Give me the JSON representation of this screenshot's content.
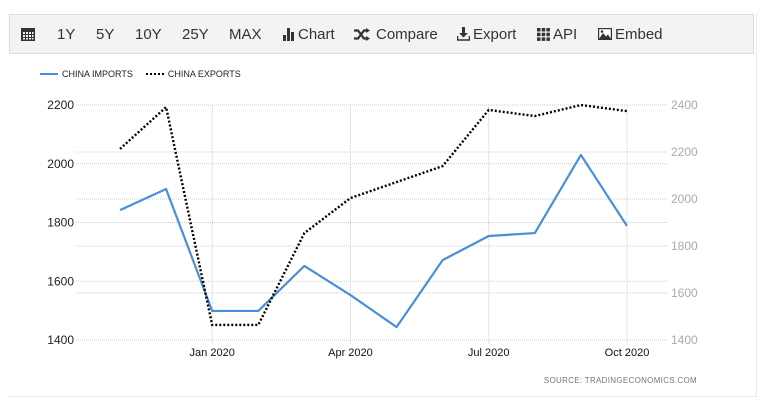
{
  "toolbar": {
    "items": [
      {
        "id": "calendar",
        "icon": "calendar-icon",
        "label": ""
      },
      {
        "id": "1y",
        "label": "1Y"
      },
      {
        "id": "5y",
        "label": "5Y"
      },
      {
        "id": "10y",
        "label": "10Y"
      },
      {
        "id": "25y",
        "label": "25Y"
      },
      {
        "id": "max",
        "label": "MAX"
      },
      {
        "id": "chart",
        "icon": "bar-chart-icon",
        "label": "Chart"
      },
      {
        "id": "compare",
        "icon": "shuffle-icon",
        "label": "Compare"
      },
      {
        "id": "export",
        "icon": "download-icon",
        "label": "Export"
      },
      {
        "id": "api",
        "icon": "grid-icon",
        "label": "API"
      },
      {
        "id": "embed",
        "icon": "image-icon",
        "label": "Embed"
      }
    ]
  },
  "legend": {
    "imports": "CHINA IMPORTS",
    "exports": "CHINA EXPORTS"
  },
  "source": "SOURCE:  TRADINGECONOMICS.COM",
  "colors": {
    "imports": "#4a90d9",
    "exports": "#000000",
    "grid": "#cccccc",
    "toolbar_bg": "#f3f3f3"
  },
  "chart_data": {
    "type": "line",
    "title": "",
    "xlabel": "",
    "ylabel": "",
    "x": [
      "Nov 2019",
      "Dec 2019",
      "Jan 2020",
      "Feb 2020",
      "Mar 2020",
      "Apr 2020",
      "May 2020",
      "Jun 2020",
      "Jul 2020",
      "Aug 2020",
      "Sep 2020",
      "Oct 2020"
    ],
    "x_tick_labels": [
      "Jan 2020",
      "Apr 2020",
      "Jul 2020",
      "Oct 2020"
    ],
    "series": [
      {
        "name": "CHINA IMPORTS",
        "axis": "left",
        "style": "solid",
        "color": "#4a90d9",
        "values": [
          1842,
          1914,
          1499,
          1499,
          1652,
          1553,
          1444,
          1672,
          1754,
          1764,
          2030,
          1788
        ]
      },
      {
        "name": "CHINA EXPORTS",
        "axis": "right",
        "style": "dotted",
        "color": "#000000",
        "values": [
          2213,
          2391,
          1464,
          1464,
          1855,
          2004,
          2072,
          2140,
          2379,
          2353,
          2400,
          2374
        ]
      }
    ],
    "y_left": {
      "ticks": [
        1400,
        1600,
        1800,
        2000,
        2200
      ],
      "ylim": [
        1400,
        2200
      ]
    },
    "y_right": {
      "ticks": [
        1400,
        1600,
        1800,
        2000,
        2200,
        2400
      ],
      "ylim": [
        1400,
        2400
      ]
    },
    "grid": true,
    "legend_position": "top-left"
  }
}
